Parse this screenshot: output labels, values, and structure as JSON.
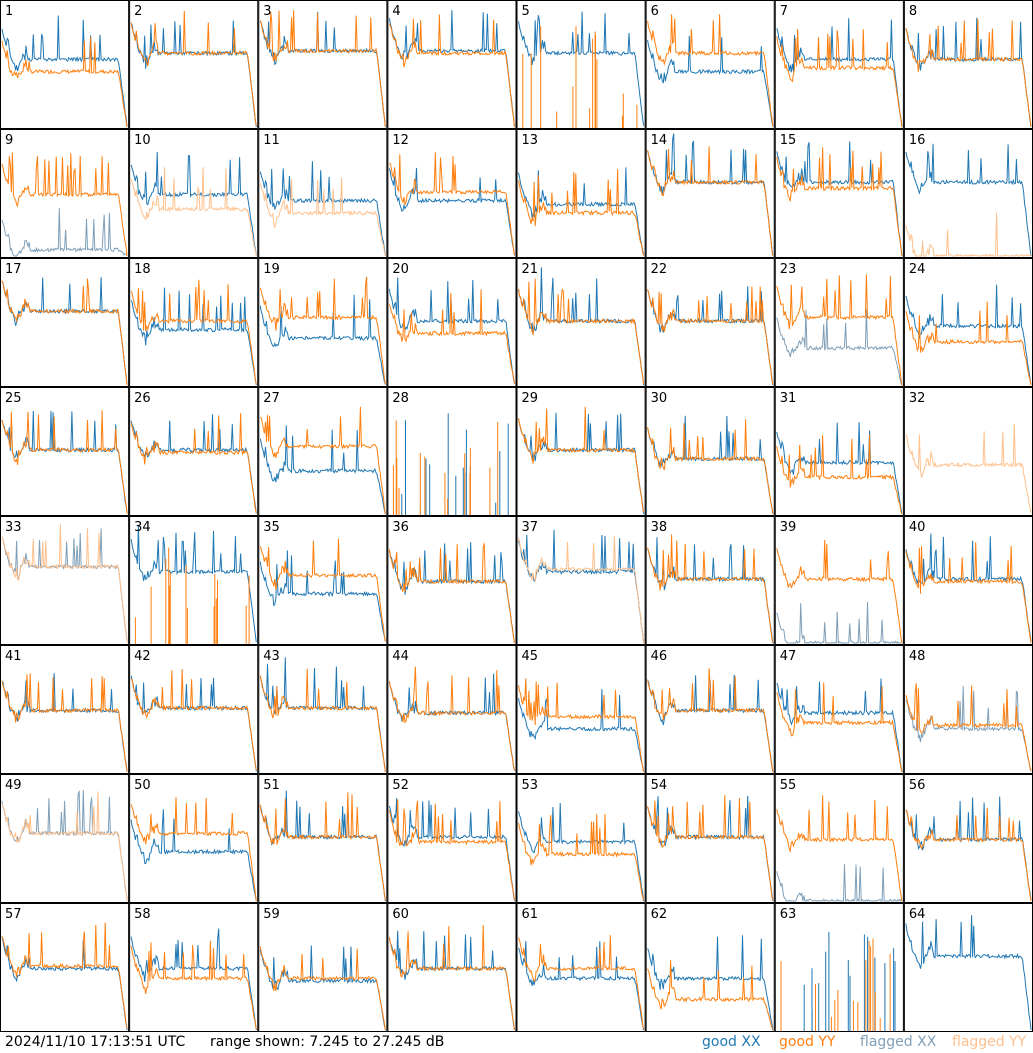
{
  "footer": {
    "timestamp": "2024/11/10 17:13:51 UTC",
    "range_text": "range shown: 7.245 to 27.245 dB"
  },
  "legend": {
    "good_xx": "good XX",
    "good_yy": "good YY",
    "flagged_xx": "flagged XX",
    "flagged_yy": "flagged YY"
  },
  "colors": {
    "good_xx": "#1f77b4",
    "good_yy": "#ff7f0e",
    "flagged_xx": "#7f9fb8",
    "flagged_yy": "#ffc08c"
  },
  "chart_data": {
    "type": "line",
    "description_units": "dB",
    "ylim": [
      7.245,
      27.245
    ],
    "grid_rows": 8,
    "grid_cols": 8,
    "panels": [
      {
        "label": "1",
        "xx": "good",
        "yy": "good",
        "level_xx": 0.55,
        "level_yy": 0.45
      },
      {
        "label": "2",
        "xx": "good",
        "yy": "good",
        "level_xx": 0.6,
        "level_yy": 0.6
      },
      {
        "label": "3",
        "xx": "good",
        "yy": "good",
        "level_xx": 0.62,
        "level_yy": 0.62
      },
      {
        "label": "4",
        "xx": "good",
        "yy": "good",
        "level_xx": 0.62,
        "level_yy": 0.6
      },
      {
        "label": "5",
        "xx": "good",
        "yy": "dead",
        "level_xx": 0.6,
        "level_yy": 0.0
      },
      {
        "label": "6",
        "xx": "good",
        "yy": "good",
        "level_xx": 0.45,
        "level_yy": 0.6
      },
      {
        "label": "7",
        "xx": "good",
        "yy": "good",
        "level_xx": 0.55,
        "level_yy": 0.48
      },
      {
        "label": "8",
        "xx": "good",
        "yy": "good",
        "level_xx": 0.55,
        "level_yy": 0.55
      },
      {
        "label": "9",
        "xx": "flagged",
        "yy": "good",
        "level_xx": 0.05,
        "level_yy": 0.5
      },
      {
        "label": "10",
        "xx": "good",
        "yy": "flagged",
        "level_xx": 0.5,
        "level_yy": 0.38
      },
      {
        "label": "11",
        "xx": "good",
        "yy": "flagged",
        "level_xx": 0.45,
        "level_yy": 0.35
      },
      {
        "label": "12",
        "xx": "good",
        "yy": "good",
        "level_xx": 0.45,
        "level_yy": 0.52
      },
      {
        "label": "13",
        "xx": "good",
        "yy": "good",
        "level_xx": 0.42,
        "level_yy": 0.35
      },
      {
        "label": "14",
        "xx": "good",
        "yy": "good",
        "level_xx": 0.6,
        "level_yy": 0.6
      },
      {
        "label": "15",
        "xx": "good",
        "yy": "good",
        "level_xx": 0.6,
        "level_yy": 0.55
      },
      {
        "label": "16",
        "xx": "good",
        "yy": "flagged",
        "level_xx": 0.6,
        "level_yy": 0.0
      },
      {
        "label": "17",
        "xx": "good",
        "yy": "good",
        "level_xx": 0.6,
        "level_yy": 0.6
      },
      {
        "label": "18",
        "xx": "good",
        "yy": "good",
        "level_xx": 0.45,
        "level_yy": 0.52
      },
      {
        "label": "19",
        "xx": "good",
        "yy": "good",
        "level_xx": 0.38,
        "level_yy": 0.55
      },
      {
        "label": "20",
        "xx": "good",
        "yy": "good",
        "level_xx": 0.52,
        "level_yy": 0.42
      },
      {
        "label": "21",
        "xx": "good",
        "yy": "good",
        "level_xx": 0.52,
        "level_yy": 0.52
      },
      {
        "label": "22",
        "xx": "good",
        "yy": "good",
        "level_xx": 0.52,
        "level_yy": 0.52
      },
      {
        "label": "23",
        "xx": "flagged",
        "yy": "good",
        "level_xx": 0.3,
        "level_yy": 0.55
      },
      {
        "label": "24",
        "xx": "good",
        "yy": "good",
        "level_xx": 0.48,
        "level_yy": 0.35
      },
      {
        "label": "25",
        "xx": "good",
        "yy": "good",
        "level_xx": 0.52,
        "level_yy": 0.52
      },
      {
        "label": "26",
        "xx": "good",
        "yy": "good",
        "level_xx": 0.52,
        "level_yy": 0.5
      },
      {
        "label": "27",
        "xx": "good",
        "yy": "good",
        "level_xx": 0.35,
        "level_yy": 0.55
      },
      {
        "label": "28",
        "xx": "dead",
        "yy": "dead",
        "level_xx": 0.0,
        "level_yy": 0.0
      },
      {
        "label": "29",
        "xx": "good",
        "yy": "good",
        "level_xx": 0.52,
        "level_yy": 0.52
      },
      {
        "label": "30",
        "xx": "good",
        "yy": "good",
        "level_xx": 0.45,
        "level_yy": 0.45
      },
      {
        "label": "31",
        "xx": "good",
        "yy": "good",
        "level_xx": 0.42,
        "level_yy": 0.3
      },
      {
        "label": "32",
        "xx": "none",
        "yy": "flagged",
        "level_xx": 0.0,
        "level_yy": 0.4
      },
      {
        "label": "33",
        "xx": "flagged",
        "yy": "flagged",
        "level_xx": 0.62,
        "level_yy": 0.62
      },
      {
        "label": "34",
        "xx": "good",
        "yy": "dead",
        "level_xx": 0.58,
        "level_yy": 0.0
      },
      {
        "label": "35",
        "xx": "good",
        "yy": "good",
        "level_xx": 0.4,
        "level_yy": 0.55
      },
      {
        "label": "36",
        "xx": "good",
        "yy": "good",
        "level_xx": 0.5,
        "level_yy": 0.5
      },
      {
        "label": "37",
        "xx": "good",
        "yy": "flagged",
        "level_xx": 0.58,
        "level_yy": 0.6
      },
      {
        "label": "38",
        "xx": "good",
        "yy": "good",
        "level_xx": 0.52,
        "level_yy": 0.52
      },
      {
        "label": "39",
        "xx": "flagged",
        "yy": "good",
        "level_xx": 0.0,
        "level_yy": 0.52
      },
      {
        "label": "40",
        "xx": "good",
        "yy": "good",
        "level_xx": 0.52,
        "level_yy": 0.5
      },
      {
        "label": "41",
        "xx": "good",
        "yy": "good",
        "level_xx": 0.5,
        "level_yy": 0.5
      },
      {
        "label": "42",
        "xx": "good",
        "yy": "good",
        "level_xx": 0.52,
        "level_yy": 0.52
      },
      {
        "label": "43",
        "xx": "good",
        "yy": "good",
        "level_xx": 0.52,
        "level_yy": 0.52
      },
      {
        "label": "44",
        "xx": "good",
        "yy": "good",
        "level_xx": 0.48,
        "level_yy": 0.48
      },
      {
        "label": "45",
        "xx": "good",
        "yy": "good",
        "level_xx": 0.35,
        "level_yy": 0.45
      },
      {
        "label": "46",
        "xx": "good",
        "yy": "good",
        "level_xx": 0.5,
        "level_yy": 0.5
      },
      {
        "label": "47",
        "xx": "good",
        "yy": "good",
        "level_xx": 0.48,
        "level_yy": 0.4
      },
      {
        "label": "48",
        "xx": "flagged",
        "yy": "good",
        "level_xx": 0.35,
        "level_yy": 0.38
      },
      {
        "label": "49",
        "xx": "flagged",
        "yy": "flagged",
        "level_xx": 0.55,
        "level_yy": 0.55
      },
      {
        "label": "50",
        "xx": "good",
        "yy": "good",
        "level_xx": 0.4,
        "level_yy": 0.55
      },
      {
        "label": "51",
        "xx": "good",
        "yy": "good",
        "level_xx": 0.52,
        "level_yy": 0.52
      },
      {
        "label": "52",
        "xx": "good",
        "yy": "good",
        "level_xx": 0.52,
        "level_yy": 0.48
      },
      {
        "label": "53",
        "xx": "good",
        "yy": "good",
        "level_xx": 0.48,
        "level_yy": 0.38
      },
      {
        "label": "54",
        "xx": "good",
        "yy": "good",
        "level_xx": 0.52,
        "level_yy": 0.52
      },
      {
        "label": "55",
        "xx": "flagged",
        "yy": "good",
        "level_xx": 0.0,
        "level_yy": 0.5
      },
      {
        "label": "56",
        "xx": "good",
        "yy": "good",
        "level_xx": 0.5,
        "level_yy": 0.5
      },
      {
        "label": "57",
        "xx": "good",
        "yy": "good",
        "level_xx": 0.5,
        "level_yy": 0.52
      },
      {
        "label": "58",
        "xx": "good",
        "yy": "good",
        "level_xx": 0.5,
        "level_yy": 0.42
      },
      {
        "label": "59",
        "xx": "good",
        "yy": "good",
        "level_xx": 0.4,
        "level_yy": 0.42
      },
      {
        "label": "60",
        "xx": "good",
        "yy": "good",
        "level_xx": 0.5,
        "level_yy": 0.5
      },
      {
        "label": "61",
        "xx": "good",
        "yy": "good",
        "level_xx": 0.42,
        "level_yy": 0.5
      },
      {
        "label": "62",
        "xx": "good",
        "yy": "good",
        "level_xx": 0.42,
        "level_yy": 0.25
      },
      {
        "label": "63",
        "xx": "dead",
        "yy": "dead",
        "level_xx": 0.0,
        "level_yy": 0.0
      },
      {
        "label": "64",
        "xx": "good",
        "yy": "none",
        "level_xx": 0.6,
        "level_yy": 0.0
      }
    ]
  }
}
